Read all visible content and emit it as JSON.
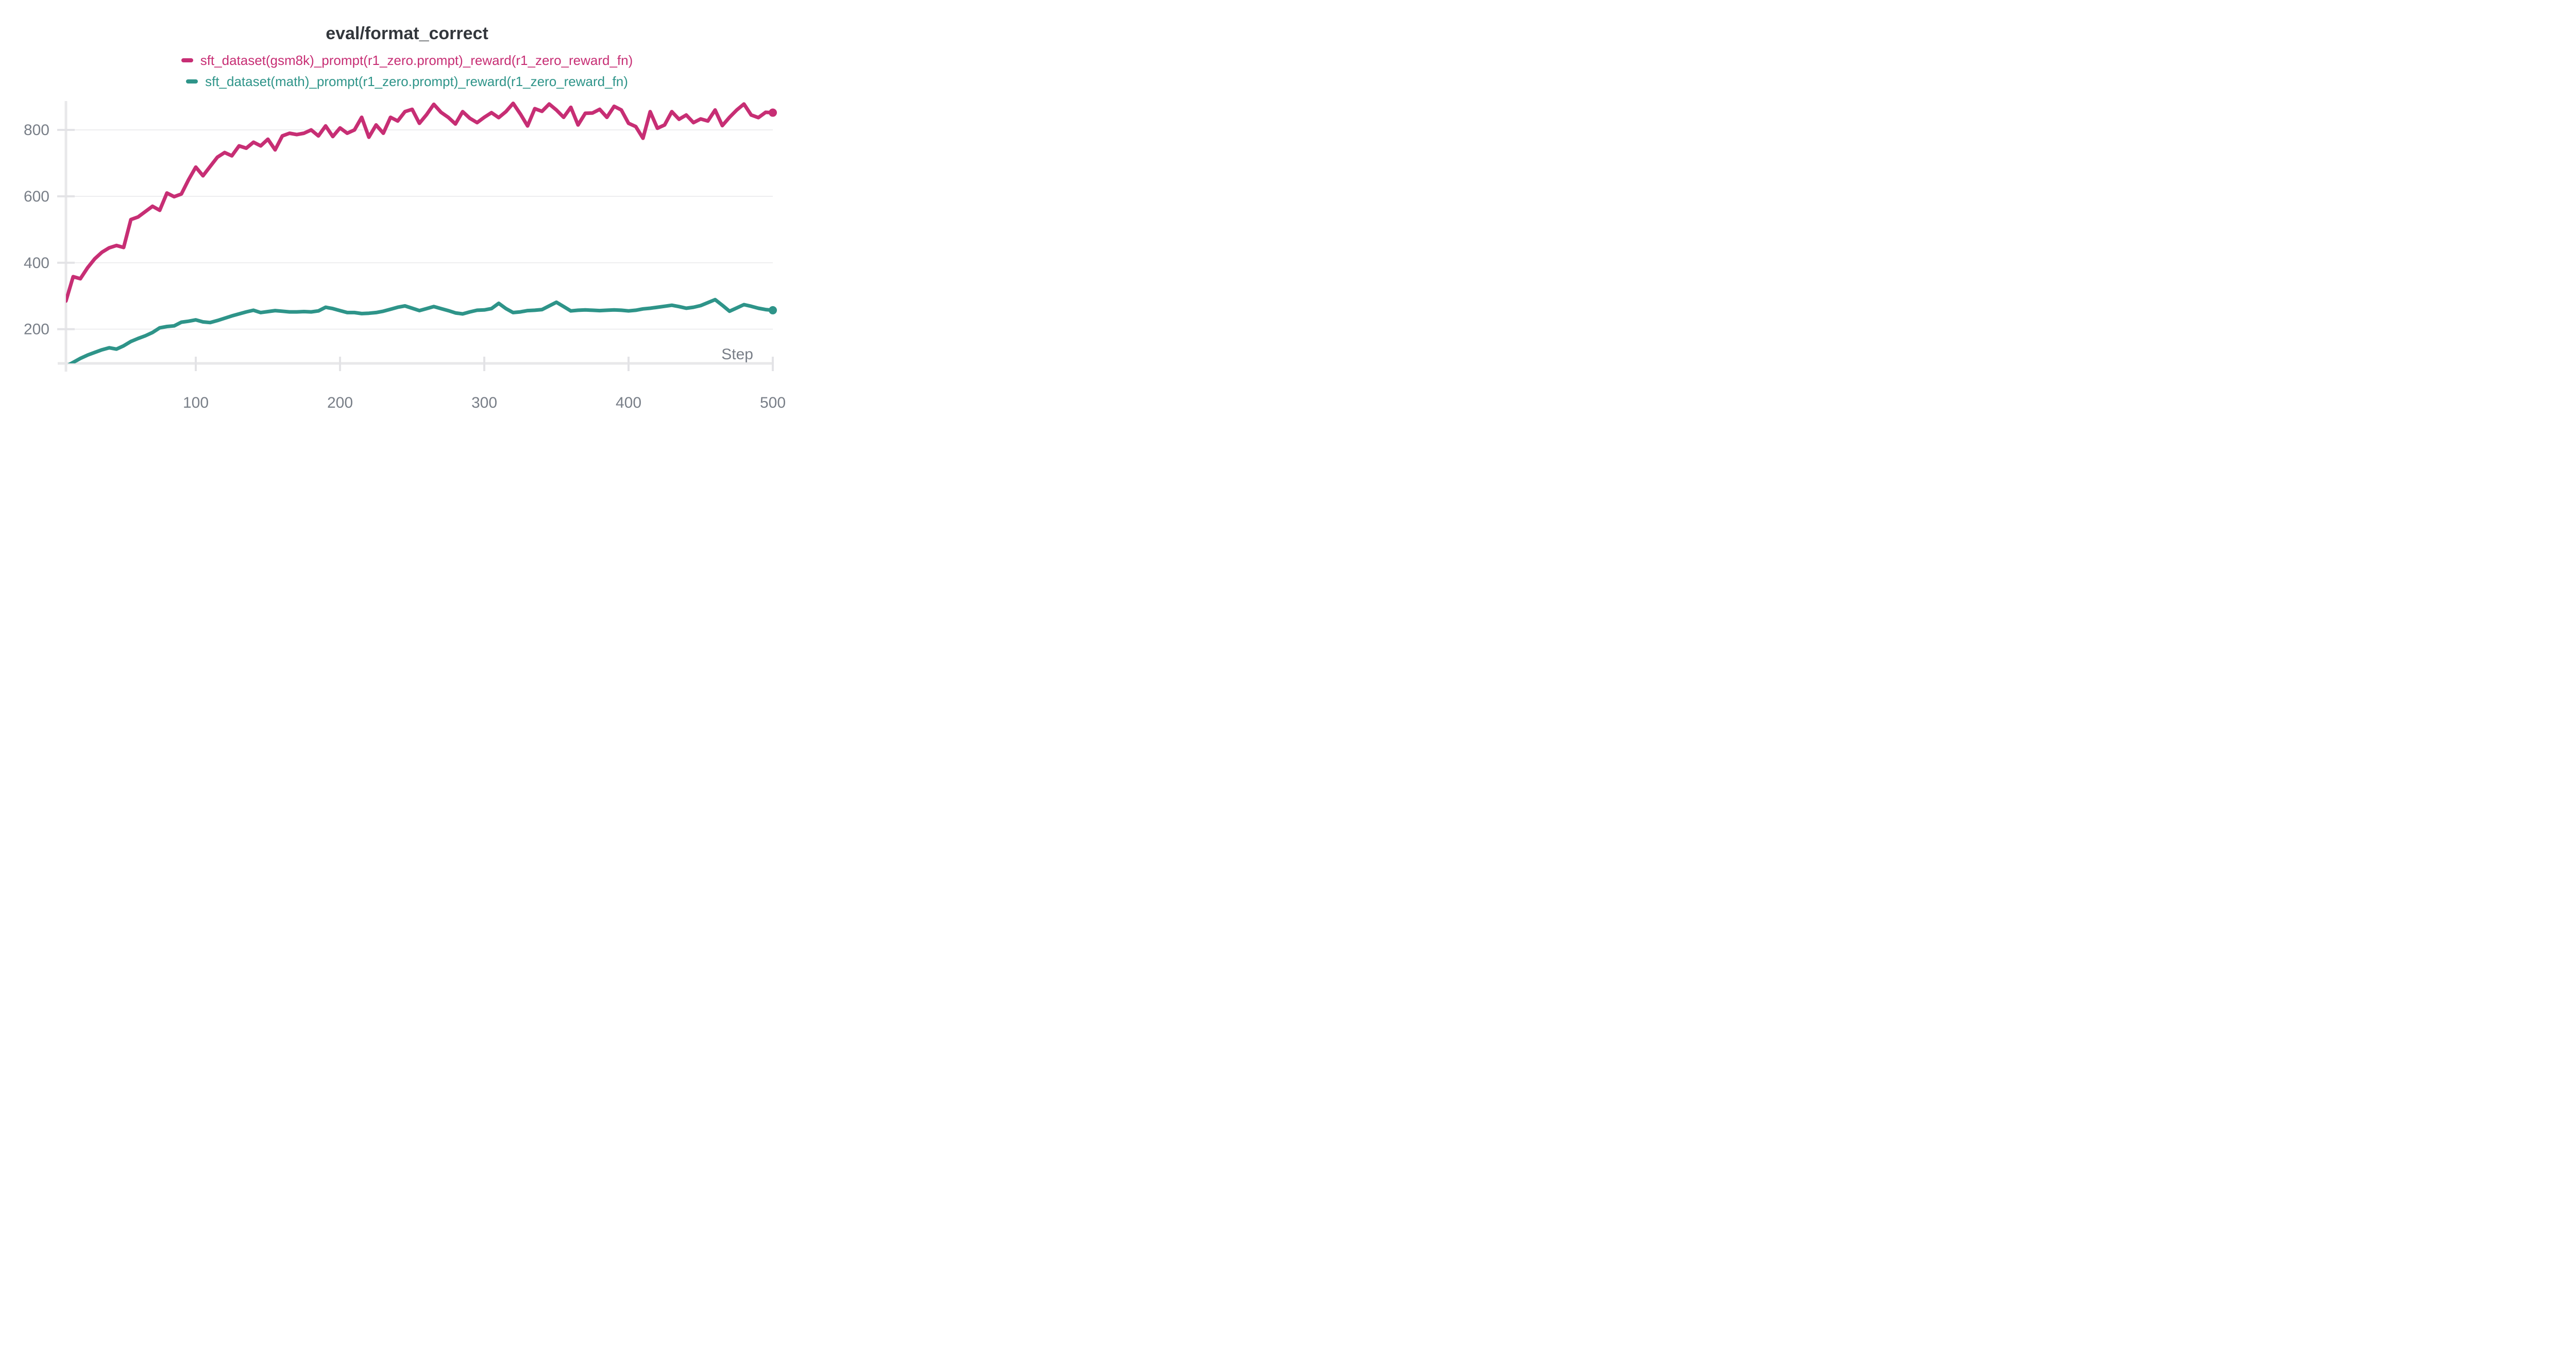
{
  "panel": {
    "background": "#ffffff",
    "title_color": "#33373c",
    "axis_color": "#e8e8ea",
    "grid_color": "#ededef",
    "tick_mark_color": "#e3e3e6",
    "tick_label_color": "#787e87"
  },
  "chart_data": {
    "type": "line",
    "title": "eval/format_correct",
    "xlabel": "Step",
    "ylabel": "",
    "x_ticks": [
      100,
      200,
      300,
      400,
      500
    ],
    "y_ticks": [
      200,
      400,
      600,
      800
    ],
    "xlim": [
      10,
      500
    ],
    "ylim": [
      97,
      887
    ],
    "grid": "horizontal-only",
    "legend_position": "top-center",
    "x": [
      10,
      15,
      20,
      25,
      30,
      35,
      40,
      45,
      50,
      55,
      60,
      65,
      70,
      75,
      80,
      85,
      90,
      95,
      100,
      105,
      110,
      115,
      120,
      125,
      130,
      135,
      140,
      145,
      150,
      155,
      160,
      165,
      170,
      175,
      180,
      185,
      190,
      195,
      200,
      205,
      210,
      215,
      220,
      225,
      230,
      235,
      240,
      245,
      250,
      255,
      260,
      265,
      270,
      275,
      280,
      285,
      290,
      295,
      300,
      305,
      310,
      315,
      320,
      325,
      330,
      335,
      340,
      345,
      350,
      355,
      360,
      365,
      370,
      375,
      380,
      385,
      390,
      395,
      400,
      405,
      410,
      415,
      420,
      425,
      430,
      435,
      440,
      445,
      450,
      455,
      460,
      465,
      470,
      475,
      480,
      485,
      490,
      495,
      500
    ],
    "series": [
      {
        "name": "sft_dataset(gsm8k)_prompt(r1_zero.prompt)_reward(r1_zero_reward_fn)",
        "color": "#c72e74",
        "end_dot": true,
        "values": [
          285,
          358,
          352,
          385,
          412,
          432,
          445,
          452,
          446,
          530,
          538,
          554,
          570,
          558,
          610,
          599,
          607,
          650,
          688,
          662,
          690,
          718,
          732,
          722,
          752,
          745,
          763,
          752,
          772,
          740,
          782,
          790,
          786,
          790,
          800,
          782,
          812,
          780,
          806,
          790,
          800,
          838,
          778,
          815,
          790,
          838,
          827,
          855,
          862,
          820,
          846,
          877,
          853,
          838,
          818,
          855,
          835,
          822,
          838,
          852,
          837,
          855,
          880,
          848,
          812,
          864,
          856,
          878,
          860,
          838,
          868,
          815,
          850,
          851,
          862,
          838,
          871,
          860,
          820,
          810,
          775,
          855,
          805,
          815,
          855,
          832,
          845,
          822,
          833,
          827,
          860,
          813,
          838,
          860,
          878,
          845,
          837,
          853,
          852
        ]
      },
      {
        "name": "sft_dataset(math)_prompt(r1_zero.prompt)_reward(r1_zero_reward_fn)",
        "color": "#2e9489",
        "end_dot": true,
        "values": [
          88,
          100,
          112,
          122,
          130,
          138,
          144,
          140,
          150,
          163,
          172,
          180,
          190,
          204,
          208,
          210,
          221,
          224,
          228,
          222,
          220,
          226,
          233,
          240,
          246,
          252,
          257,
          250,
          253,
          256,
          254,
          252,
          252,
          253,
          252,
          255,
          266,
          262,
          256,
          250,
          250,
          247,
          248,
          250,
          254,
          260,
          266,
          270,
          263,
          256,
          262,
          268,
          262,
          256,
          249,
          246,
          252,
          257,
          258,
          262,
          278,
          262,
          250,
          252,
          256,
          257,
          259,
          270,
          281,
          268,
          255,
          257,
          258,
          257,
          256,
          257,
          258,
          257,
          255,
          257,
          261,
          263,
          266,
          269,
          272,
          268,
          263,
          266,
          271,
          280,
          289,
          272,
          254,
          264,
          274,
          269,
          263,
          259,
          257
        ]
      }
    ]
  }
}
